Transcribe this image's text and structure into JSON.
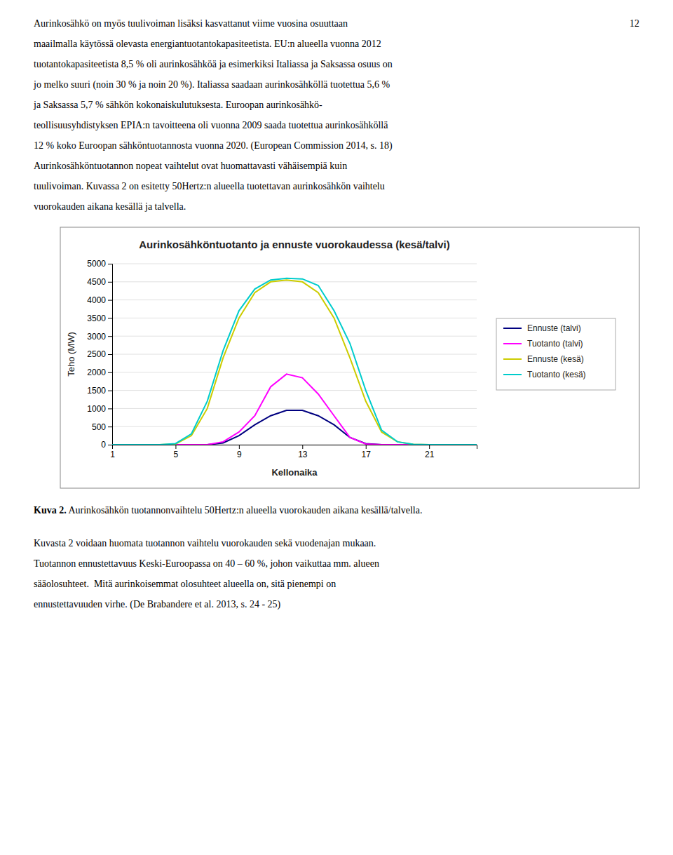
{
  "page_number": "12",
  "para1_lines": [
    "Aurinkosähkö on myös tuulivoiman lisäksi kasvattanut viime vuosina osuuttaan",
    "maailmalla käytössä olevasta energiantuotantokapasiteetista. EU:n alueella vuonna 2012",
    "tuotantokapasiteetista 8,5 % oli aurinkosähköä ja esimerkiksi Italiassa ja Saksassa osuus on",
    "jo melko suuri (noin 30 % ja noin 20 %). Italiassa saadaan aurinkosähköllä tuotettua 5,6 %",
    "ja Saksassa 5,7 % sähkön kokonaiskulutuksesta. Euroopan aurinkosähkö-",
    "teollisuusyhdistyksen EPIA:n tavoitteena oli vuonna 2009 saada tuotettua aurinkosähköllä",
    "12 % koko Euroopan sähköntuotannosta vuonna 2020. (European Commission 2014, s. 18)",
    "Aurinkosähköntuotannon nopeat vaihtelut ovat huomattavasti vähäisempiä kuin",
    "tuulivoiman. Kuvassa 2 on esitetty 50Hertz:n alueella tuotettavan aurinkosähkön vaihtelu",
    "vuorokauden aikana kesällä ja talvella."
  ],
  "caption_bold": "Kuva 2.",
  "caption_normal": " Aurinkosähkön tuotannonvaihtelu 50Hertz:n alueella vuorokauden aikana kesällä/talvella.",
  "para2_lines": [
    "Kuvasta 2 voidaan huomata tuotannon vaihtelu vuorokauden sekä vuodenajan mukaan.",
    "Tuotannon ennustettavuus Keski-Euroopassa on 40 – 60 %, johon vaikuttaa mm. alueen",
    "sääolosuhteet.  Mitä aurinkoisemmat olosuhteet alueella on, sitä pienempi on",
    "ennustettavuuden virhe. (De Brabandere et al. 2013, s. 24 - 25)"
  ],
  "chart_data": {
    "type": "line",
    "title": "Aurinkosähköntuotanto ja ennuste vuorokaudessa (kesä/talvi)",
    "x_label": "Kellonaika",
    "y_label": "Teho (MW)",
    "x": [
      1,
      2,
      3,
      4,
      5,
      6,
      7,
      8,
      9,
      10,
      11,
      12,
      13,
      14,
      15,
      16,
      17,
      18,
      19,
      20,
      21,
      22,
      23,
      24
    ],
    "xlim": [
      1,
      24
    ],
    "xticks": [
      1,
      5,
      9,
      13,
      17,
      21
    ],
    "ylim": [
      0,
      5000
    ],
    "yticks": [
      0,
      500,
      1000,
      1500,
      2000,
      2500,
      3000,
      3500,
      4000,
      4500,
      5000
    ],
    "grid": true,
    "legend": "right",
    "series": [
      {
        "name": "Ennuste (talvi)",
        "color": "#000080",
        "values": [
          0,
          0,
          0,
          0,
          0,
          0,
          0,
          50,
          250,
          550,
          800,
          950,
          950,
          800,
          550,
          200,
          30,
          0,
          0,
          0,
          0,
          0,
          0,
          0
        ]
      },
      {
        "name": "Tuotanto (talvi)",
        "color": "#FF00FF",
        "values": [
          0,
          0,
          0,
          0,
          0,
          0,
          0,
          80,
          350,
          800,
          1600,
          1950,
          1850,
          1400,
          800,
          200,
          20,
          0,
          0,
          0,
          0,
          0,
          0,
          0
        ]
      },
      {
        "name": "Ennuste (kesä)",
        "color": "#CCCC00",
        "values": [
          0,
          0,
          0,
          0,
          20,
          250,
          1000,
          2400,
          3500,
          4200,
          4500,
          4550,
          4500,
          4200,
          3500,
          2400,
          1200,
          350,
          80,
          10,
          0,
          0,
          0,
          0
        ]
      },
      {
        "name": "Tuotanto (kesä)",
        "color": "#00CCCC",
        "values": [
          0,
          0,
          0,
          0,
          30,
          300,
          1200,
          2600,
          3700,
          4300,
          4550,
          4600,
          4580,
          4400,
          3700,
          2800,
          1500,
          400,
          80,
          10,
          0,
          0,
          0,
          0
        ]
      }
    ]
  }
}
